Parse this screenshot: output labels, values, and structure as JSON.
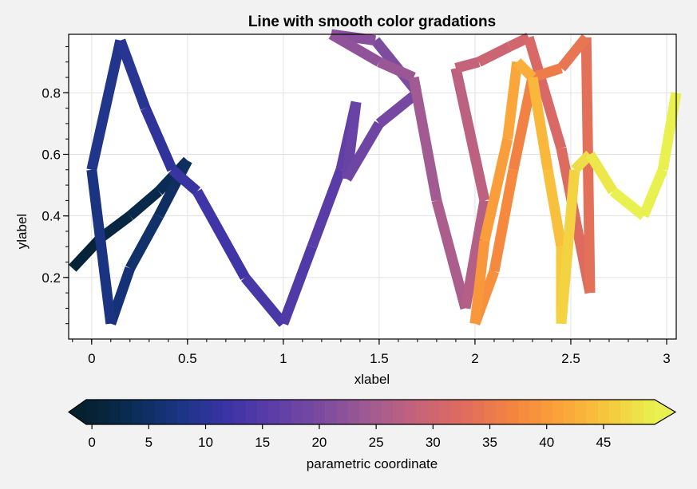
{
  "chart_data": {
    "type": "line",
    "title": "Line with smooth color gradations",
    "xlabel": "xlabel",
    "ylabel": "ylabel",
    "xlim": [
      -0.12,
      3.05
    ],
    "ylim": [
      0.0,
      0.99
    ],
    "grid": true,
    "xticks": [
      0,
      0.5,
      1,
      1.5,
      2,
      2.5,
      3
    ],
    "xtick_labels": [
      "0",
      "0.5",
      "1",
      "1.5",
      "2",
      "2.5",
      "3"
    ],
    "yticks": [
      0.2,
      0.4,
      0.6,
      0.8
    ],
    "ytick_labels": [
      "0.2",
      "0.4",
      "0.6",
      "0.8"
    ],
    "colormap": "thermal",
    "colormap_stops": [
      "#05202f",
      "#0a2d56",
      "#1c3586",
      "#3c34a6",
      "#5e3ea8",
      "#7c4ba0",
      "#a25b92",
      "#c66379",
      "#e06c5e",
      "#f4853f",
      "#fba33a",
      "#f7c73d",
      "#e8f150"
    ],
    "series": [
      {
        "x": [
          -0.1,
          0.05,
          0.2,
          0.35,
          0.5,
          0.35,
          0.2,
          0.1,
          0.0,
          0.15,
          0.28,
          0.42,
          0.55,
          0.8,
          1.0,
          1.15,
          1.3,
          1.38,
          1.33,
          1.5,
          1.7,
          1.48,
          1.25,
          1.5,
          1.68,
          1.8,
          1.95,
          2.05,
          1.9,
          2.02,
          2.18,
          2.28,
          2.45,
          2.6,
          2.58,
          2.45,
          2.3,
          2.2,
          2.1,
          2.0,
          2.05,
          2.17,
          2.22,
          2.3,
          2.38,
          2.45,
          2.45,
          2.52,
          2.6,
          2.72,
          2.88,
          2.98,
          3.05
        ],
        "y": [
          0.23,
          0.33,
          0.4,
          0.48,
          0.58,
          0.4,
          0.23,
          0.05,
          0.55,
          0.97,
          0.75,
          0.55,
          0.48,
          0.2,
          0.05,
          0.3,
          0.55,
          0.77,
          0.52,
          0.7,
          0.8,
          0.97,
          0.99,
          0.9,
          0.85,
          0.45,
          0.1,
          0.45,
          0.88,
          0.9,
          0.95,
          0.98,
          0.62,
          0.15,
          0.98,
          0.88,
          0.85,
          0.55,
          0.22,
          0.05,
          0.32,
          0.65,
          0.9,
          0.85,
          0.55,
          0.3,
          0.05,
          0.55,
          0.6,
          0.48,
          0.4,
          0.55,
          0.8
        ],
        "color_values": [
          0,
          1,
          2,
          3,
          4,
          5,
          6,
          7,
          8,
          9,
          10,
          11,
          12,
          13,
          14,
          15,
          16,
          17,
          18,
          19,
          20,
          21,
          22,
          23,
          24,
          25,
          26,
          27,
          28,
          29,
          30,
          31,
          32,
          33,
          34,
          35,
          36,
          37,
          38,
          39,
          40,
          41,
          42,
          43,
          44,
          45,
          46,
          47,
          48,
          49,
          50,
          51,
          52
        ]
      }
    ],
    "colorbar": {
      "label": "parametric coordinate",
      "ticks": [
        0,
        5,
        10,
        15,
        20,
        25,
        30,
        35,
        40,
        45
      ],
      "tick_labels": [
        "0",
        "5",
        "10",
        "15",
        "20",
        "25",
        "30",
        "35",
        "40",
        "45"
      ],
      "range": [
        -0.5,
        49.5
      ],
      "extend": "both",
      "location": "bottom"
    }
  }
}
